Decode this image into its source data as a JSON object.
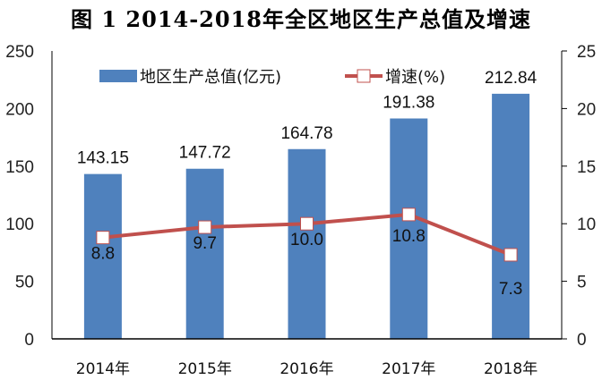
{
  "title": "图 1    2014-2018年全区地区生产总值及增速",
  "legend": {
    "bar_label": "地区生产总值(亿元)",
    "line_label": "增速(%)"
  },
  "colors": {
    "bar": "#4f81bd",
    "line": "#c0504d",
    "marker_fill": "#ffffff"
  },
  "chart_data": {
    "type": "bar+line",
    "title": "2014-2018年全区地区生产总值及增速",
    "categories": [
      "2014年",
      "2015年",
      "2016年",
      "2017年",
      "2018年"
    ],
    "series": [
      {
        "name": "地区生产总值(亿元)",
        "type": "bar",
        "axis": "left",
        "values": [
          143.15,
          147.72,
          164.78,
          191.38,
          212.84
        ],
        "labels": [
          "143.15",
          "147.72",
          "164.78",
          "191.38",
          "212.84"
        ]
      },
      {
        "name": "增速(%)",
        "type": "line",
        "axis": "right",
        "values": [
          8.8,
          9.7,
          10.0,
          10.8,
          7.3
        ],
        "labels": [
          "8.8",
          "9.7",
          "10.0",
          "10.8",
          "7.3"
        ]
      }
    ],
    "left_axis": {
      "ylim": [
        0,
        250
      ],
      "ticks": [
        "0",
        "50",
        "100",
        "150",
        "200",
        "250"
      ]
    },
    "right_axis": {
      "ylim": [
        0,
        25
      ],
      "ticks": [
        "0",
        "5",
        "10",
        "15",
        "20",
        "25"
      ]
    },
    "xlabel": "",
    "ylabel": "",
    "grid": false,
    "legend_position": "top"
  }
}
